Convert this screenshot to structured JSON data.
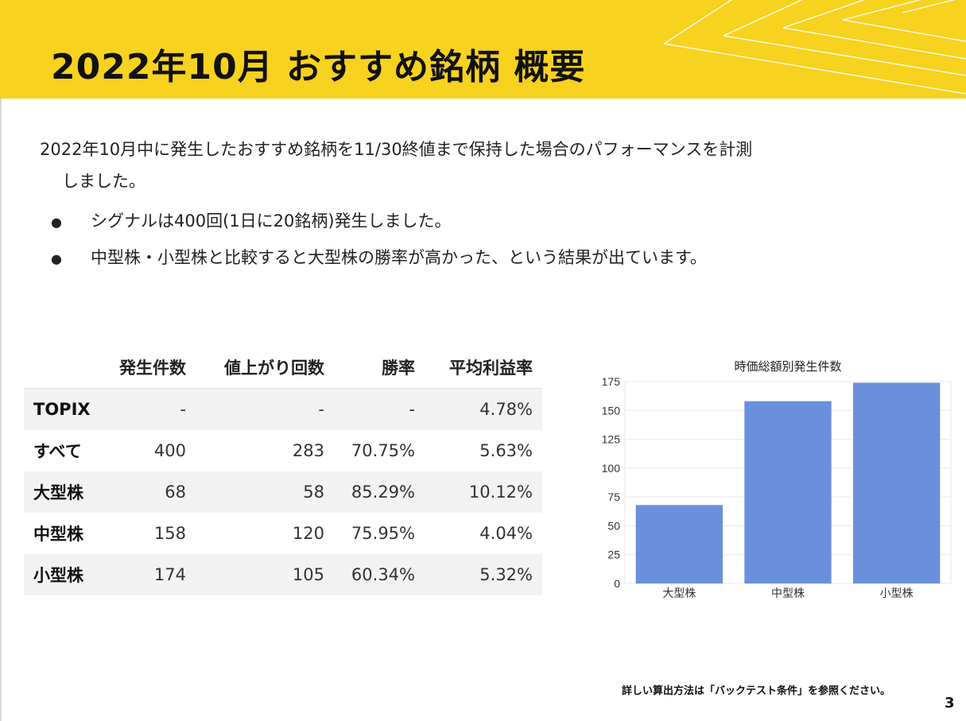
{
  "slide": {
    "title": "2022年10月 おすすめ銘柄 概要",
    "intro_line1": "2022年10月中に発生したおすすめ銘柄を11/30終値まで保持した場合のパフォーマンスを計測",
    "intro_line2": "しました。",
    "bullets": [
      "シグナルは400回(1日に20銘柄)発生しました。",
      "中型株・小型株と比較すると大型株の勝率が高かった、という結果が出ています。"
    ],
    "footnote": "詳しい算出方法は「バックテスト条件」を参照ください。",
    "page_number": "3"
  },
  "table": {
    "headers": [
      "",
      "発生件数",
      "値上がり回数",
      "勝率",
      "平均利益率"
    ],
    "rows": [
      [
        "TOPIX",
        "-",
        "-",
        "-",
        "4.78%"
      ],
      [
        "すべて",
        "400",
        "283",
        "70.75%",
        "5.63%"
      ],
      [
        "大型株",
        "68",
        "58",
        "85.29%",
        "10.12%"
      ],
      [
        "中型株",
        "158",
        "120",
        "75.95%",
        "4.04%"
      ],
      [
        "小型株",
        "174",
        "105",
        "60.34%",
        "5.32%"
      ]
    ]
  },
  "chart_data": {
    "type": "bar",
    "title": "時価総額別発生件数",
    "categories": [
      "大型株",
      "中型株",
      "小型株"
    ],
    "values": [
      68,
      158,
      174
    ],
    "ylim": [
      0,
      175
    ],
    "yticks": [
      0,
      25,
      50,
      75,
      100,
      125,
      150,
      175
    ],
    "bar_color": "#6a8fdc",
    "grid": true,
    "xlabel": "",
    "ylabel": ""
  },
  "colors": {
    "header_background": "#f7d21e",
    "bar": "#6a8fdc"
  }
}
